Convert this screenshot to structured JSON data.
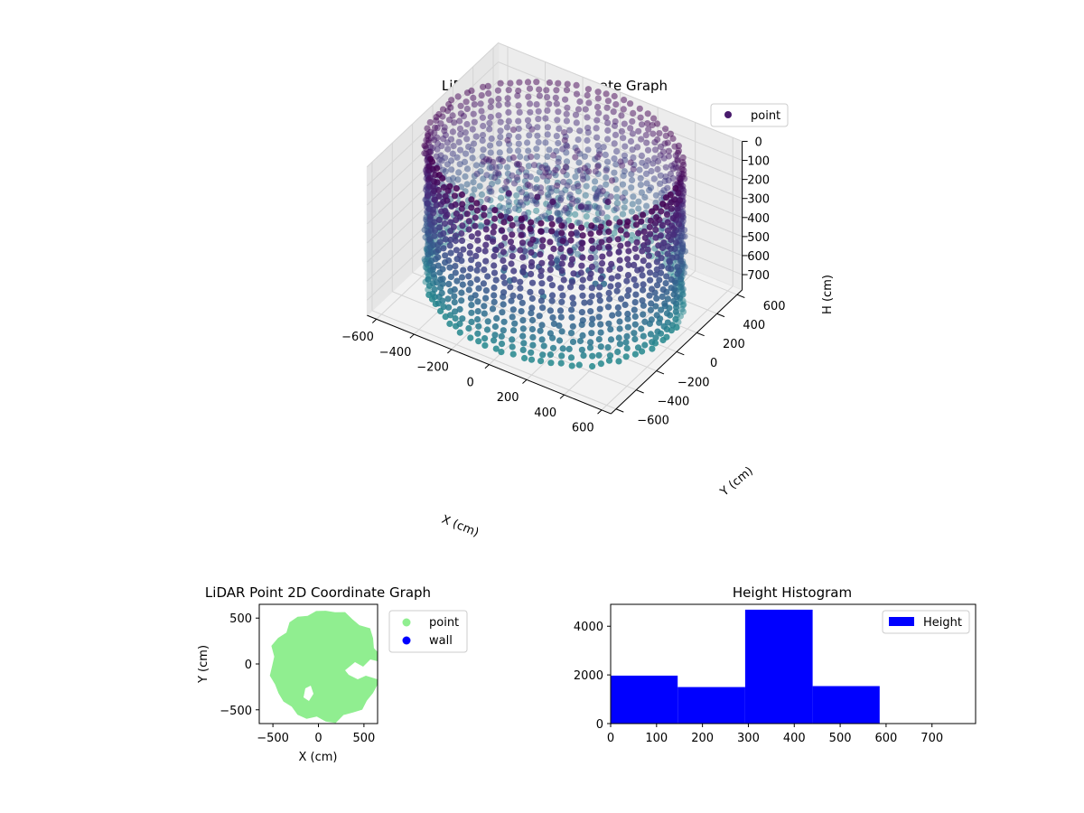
{
  "chart_data": [
    {
      "type": "scatter",
      "projection": "3d",
      "title": "LiDAR Point 3D Coordinate Graph",
      "xlabel": "X (cm)",
      "ylabel": "Y (cm)",
      "zlabel": "H (cm)",
      "xlim": [
        -650,
        650
      ],
      "ylim": [
        -650,
        650
      ],
      "zlim": [
        780,
        0
      ],
      "xticks": [
        -600,
        -400,
        -200,
        0,
        200,
        400,
        600
      ],
      "yticks": [
        -600,
        -400,
        -200,
        0,
        200,
        400,
        600
      ],
      "zticks": [
        0,
        100,
        200,
        300,
        400,
        500,
        600,
        700
      ],
      "legend": [
        "point"
      ],
      "legend_placement": "top-right",
      "grid": true,
      "colormap": "viridis",
      "series": [
        {
          "name": "point",
          "shape": "cylindrical wall of points, radius about 600 cm, heights 0–700 cm, with an interior point cluster near the center",
          "points_sample": [
            [
              600,
              0,
              350
            ],
            [
              0,
              600,
              350
            ],
            [
              -600,
              0,
              350
            ],
            [
              0,
              -600,
              350
            ],
            [
              424,
              424,
              100
            ],
            [
              -424,
              424,
              500
            ],
            [
              -424,
              -424,
              200
            ],
            [
              424,
              -424,
              650
            ],
            [
              0,
              0,
              80
            ],
            [
              50,
              100,
              150
            ],
            [
              -80,
              40,
              300
            ],
            [
              150,
              -100,
              450
            ]
          ]
        }
      ]
    },
    {
      "type": "scatter",
      "title": "LiDAR Point 2D Coordinate Graph",
      "xlabel": "X (cm)",
      "ylabel": "Y (cm)",
      "xlim": [
        -650,
        650
      ],
      "ylim": [
        -650,
        650
      ],
      "xticks": [
        -500,
        0,
        500
      ],
      "yticks": [
        -500,
        0,
        500
      ],
      "legend": [
        "point",
        "wall"
      ],
      "legend_placement": "outside-right",
      "series": [
        {
          "name": "point",
          "color": "#90ee90",
          "shape": "filled disc of points, radius about 600 cm, centered near (80, -20)"
        },
        {
          "name": "wall",
          "color": "#0000ff",
          "points": []
        }
      ]
    },
    {
      "type": "bar",
      "subtype": "histogram",
      "title": "Height Histogram",
      "xlim": [
        0,
        795
      ],
      "ylim": [
        0,
        4900
      ],
      "xticks": [
        0,
        100,
        200,
        300,
        400,
        500,
        600,
        700
      ],
      "yticks": [
        0,
        2000,
        4000
      ],
      "legend": [
        "Height"
      ],
      "legend_placement": "top-right",
      "series": [
        {
          "name": "Height",
          "color": "#0000ff",
          "bins": [
            [
              0,
              146
            ],
            [
              146,
              293
            ],
            [
              293,
              440
            ],
            [
              440,
              586
            ]
          ],
          "values": [
            1970,
            1500,
            4680,
            1540
          ]
        }
      ]
    }
  ],
  "colors": {
    "axis": "#000000",
    "pane": "#f2f2f2",
    "grid": "#d9d9d9"
  }
}
